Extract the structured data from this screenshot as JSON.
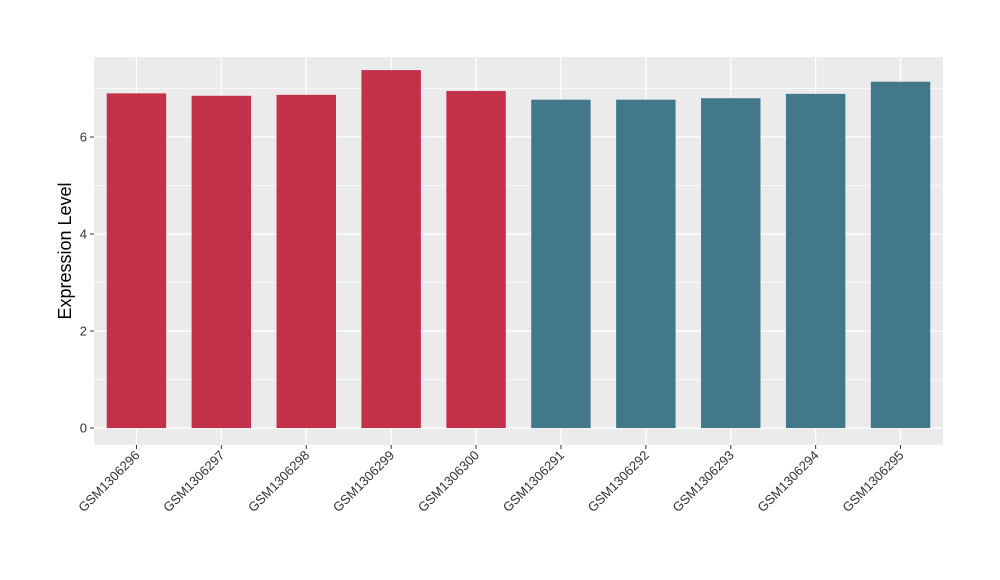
{
  "chart_data": {
    "type": "bar",
    "title": "",
    "xlabel": "",
    "ylabel": "Expression Level",
    "categories": [
      "GSM1306296",
      "GSM1306297",
      "GSM1306298",
      "GSM1306299",
      "GSM1306300",
      "GSM1306291",
      "GSM1306292",
      "GSM1306293",
      "GSM1306294",
      "GSM1306295"
    ],
    "values": [
      6.9,
      6.85,
      6.87,
      7.38,
      6.95,
      6.77,
      6.77,
      6.8,
      6.89,
      7.14
    ],
    "groups": [
      1,
      1,
      1,
      1,
      1,
      2,
      2,
      2,
      2,
      2
    ],
    "group_colors": [
      "#c3304a",
      "#43788a"
    ],
    "ylim": [
      -0.35,
      7.65
    ],
    "yticks": [
      0,
      2,
      4,
      6
    ],
    "grid": true,
    "legend": "none",
    "panel_background": "#ebebeb",
    "gridline_color": "#ffffff"
  }
}
